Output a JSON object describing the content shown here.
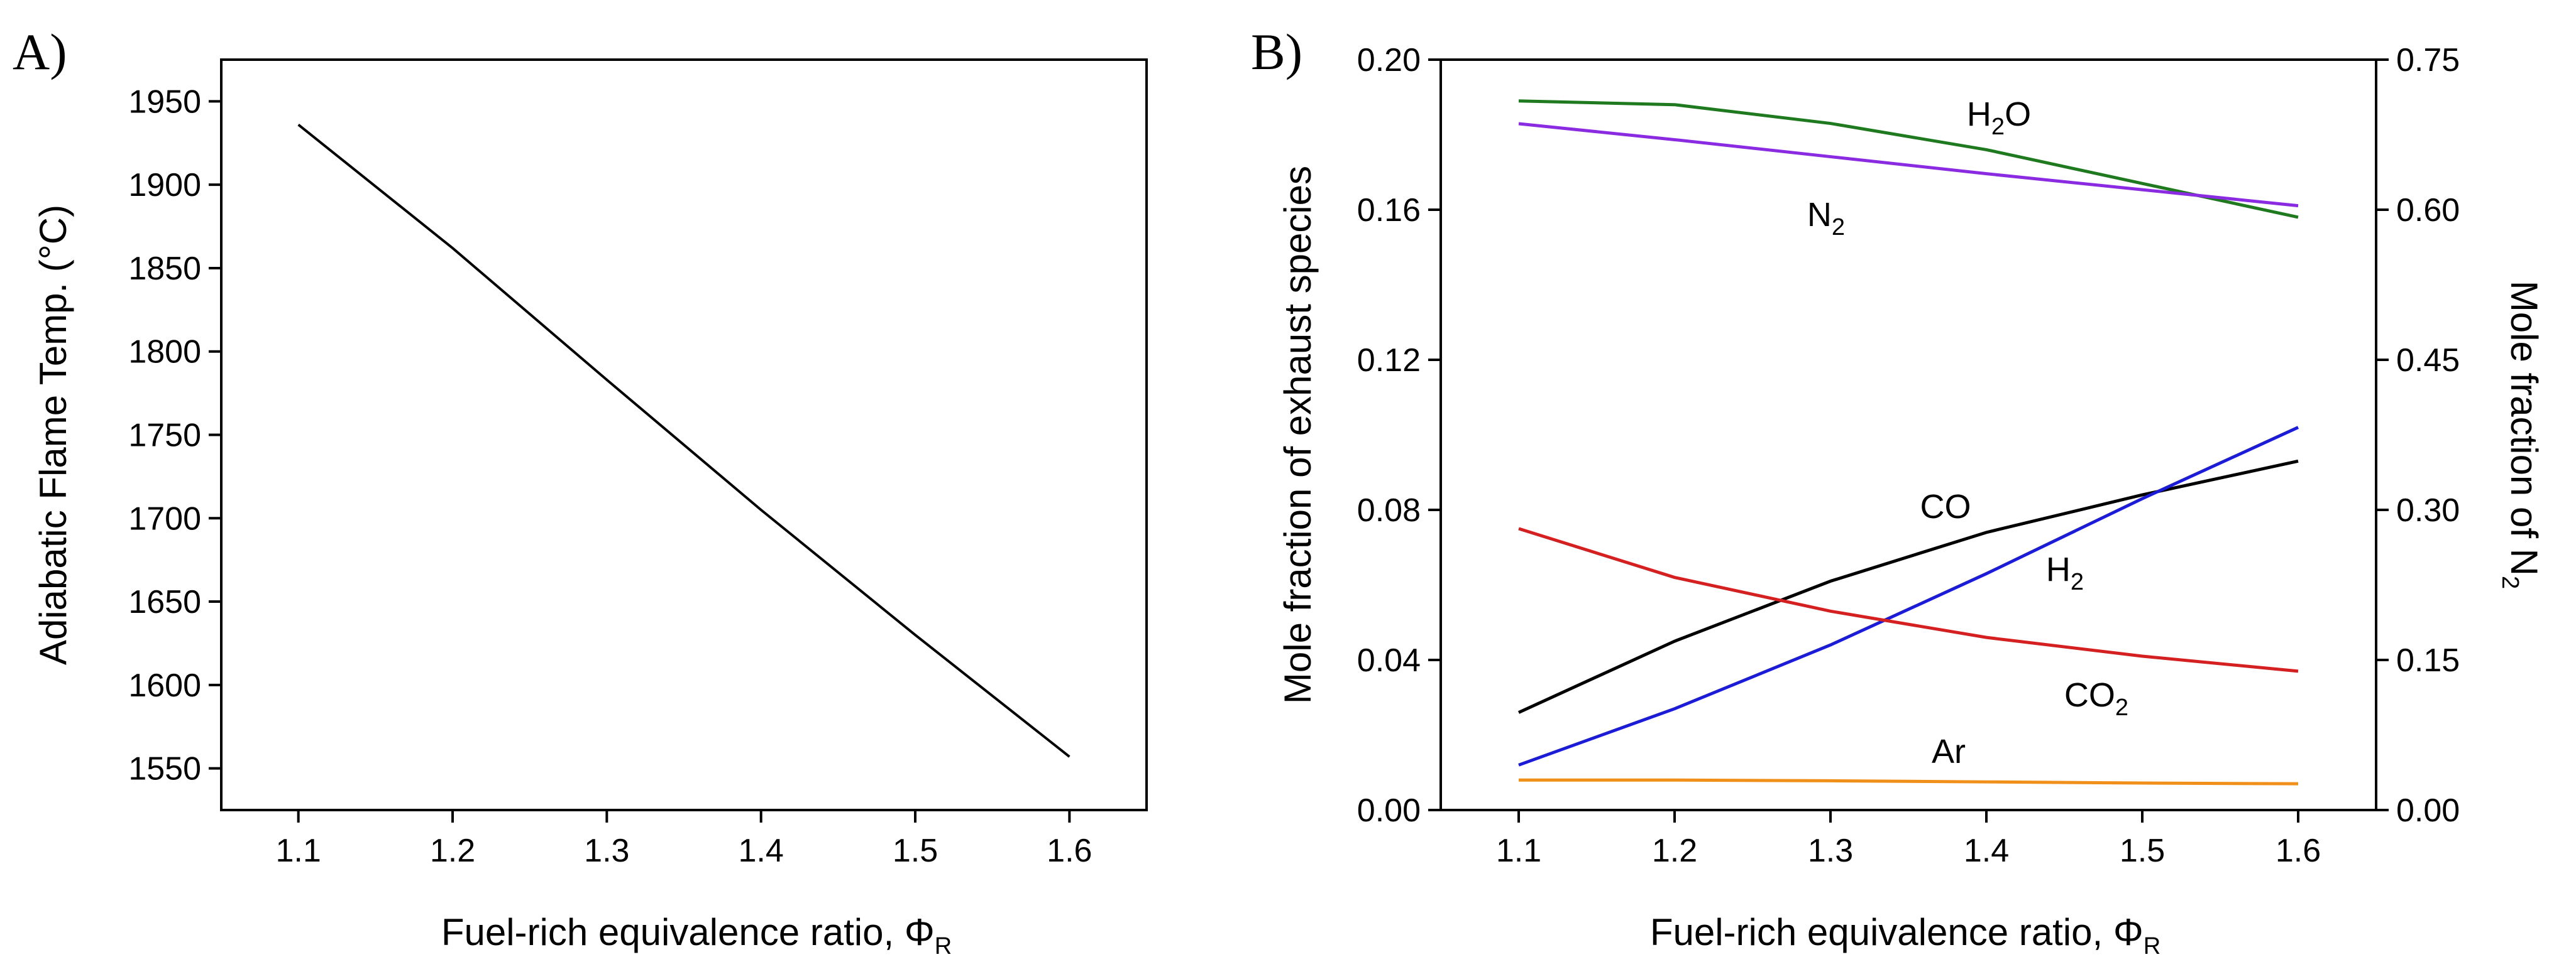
{
  "chart_data": [
    {
      "panel_label": "A)",
      "type": "line",
      "xlabel": "Fuel-rich equivalence ratio, Φ",
      "xlabel_sub": "R",
      "ylabel": "Adiabatic Flame Temp. (°C)",
      "xlim": [
        1.05,
        1.65
      ],
      "ylim": [
        1525,
        1975
      ],
      "xticks": [
        "1.1",
        "1.2",
        "1.3",
        "1.4",
        "1.5",
        "1.6"
      ],
      "yticks": [
        "1550",
        "1600",
        "1650",
        "1700",
        "1750",
        "1800",
        "1850",
        "1900",
        "1950"
      ],
      "series": [
        {
          "name": "Adiabatic flame temperature",
          "color": "#000000",
          "x": [
            1.1,
            1.2,
            1.3,
            1.4,
            1.5,
            1.6
          ],
          "y": [
            1936,
            1862,
            1783,
            1705,
            1630,
            1557
          ]
        }
      ]
    },
    {
      "panel_label": "B)",
      "type": "line",
      "xlabel": "Fuel-rich equivalence ratio, Φ",
      "xlabel_sub": "R",
      "ylabel": "Mole fraction of exhaust species",
      "y2label": "Mole fraction of N",
      "y2label_sub": "2",
      "xlim": [
        1.05,
        1.65
      ],
      "ylim": [
        0,
        0.2
      ],
      "y2lim": [
        0,
        0.75
      ],
      "xticks": [
        "1.1",
        "1.2",
        "1.3",
        "1.4",
        "1.5",
        "1.6"
      ],
      "yticks": [
        "0.00",
        "0.04",
        "0.08",
        "0.12",
        "0.16",
        "0.20"
      ],
      "y2ticks": [
        "0.00",
        "0.15",
        "0.30",
        "0.45",
        "0.60",
        "0.75"
      ],
      "series": [
        {
          "name": "H2O",
          "label": "H",
          "label_sub": "2",
          "label_tail": "O",
          "axis": "left",
          "color": "#1f7a1f",
          "x": [
            1.1,
            1.2,
            1.3,
            1.4,
            1.5,
            1.6
          ],
          "y": [
            0.189,
            0.188,
            0.183,
            0.176,
            0.167,
            0.158
          ]
        },
        {
          "name": "N2",
          "label": "N",
          "label_sub": "2",
          "label_tail": "",
          "axis": "right",
          "color": "#8a2be2",
          "x": [
            1.1,
            1.2,
            1.3,
            1.4,
            1.5,
            1.6
          ],
          "y": [
            0.686,
            0.67,
            0.653,
            0.636,
            0.62,
            0.604
          ]
        },
        {
          "name": "CO",
          "label": "CO",
          "label_sub": "",
          "label_tail": "",
          "axis": "left",
          "color": "#000000",
          "x": [
            1.1,
            1.2,
            1.3,
            1.4,
            1.5,
            1.6
          ],
          "y": [
            0.026,
            0.045,
            0.061,
            0.074,
            0.084,
            0.093
          ]
        },
        {
          "name": "H2",
          "label": "H",
          "label_sub": "2",
          "label_tail": "",
          "axis": "left",
          "color": "#1c1cd6",
          "x": [
            1.1,
            1.2,
            1.3,
            1.4,
            1.5,
            1.6
          ],
          "y": [
            0.012,
            0.027,
            0.044,
            0.063,
            0.083,
            0.102
          ]
        },
        {
          "name": "CO2",
          "label": "CO",
          "label_sub": "2",
          "label_tail": "",
          "axis": "left",
          "color": "#d42020",
          "x": [
            1.1,
            1.2,
            1.3,
            1.4,
            1.5,
            1.6
          ],
          "y": [
            0.075,
            0.062,
            0.053,
            0.046,
            0.041,
            0.037
          ]
        },
        {
          "name": "Ar",
          "label": "Ar",
          "label_sub": "",
          "label_tail": "",
          "axis": "left",
          "color": "#f0901a",
          "x": [
            1.1,
            1.2,
            1.3,
            1.4,
            1.5,
            1.6
          ],
          "y": [
            0.008,
            0.008,
            0.0078,
            0.0075,
            0.0072,
            0.007
          ]
        }
      ]
    }
  ]
}
